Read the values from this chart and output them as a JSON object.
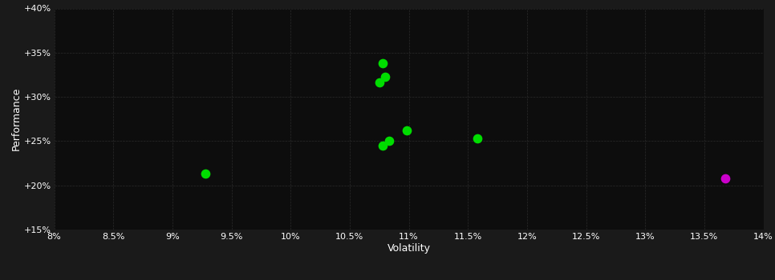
{
  "background_color": "#1a1a1a",
  "plot_bg_color": "#0d0d0d",
  "grid_color": "#2a2a2a",
  "text_color": "#ffffff",
  "xlabel": "Volatility",
  "ylabel": "Performance",
  "xlim": [
    0.08,
    0.14
  ],
  "ylim": [
    0.15,
    0.4
  ],
  "xticks": [
    0.08,
    0.085,
    0.09,
    0.095,
    0.1,
    0.105,
    0.11,
    0.115,
    0.12,
    0.125,
    0.13,
    0.135,
    0.14
  ],
  "yticks": [
    0.15,
    0.2,
    0.25,
    0.3,
    0.35,
    0.4
  ],
  "green_points": [
    [
      0.1078,
      0.338
    ],
    [
      0.108,
      0.323
    ],
    [
      0.1075,
      0.316
    ],
    [
      0.1098,
      0.262
    ],
    [
      0.1083,
      0.25
    ],
    [
      0.1078,
      0.245
    ],
    [
      0.1158,
      0.253
    ],
    [
      0.0928,
      0.213
    ]
  ],
  "magenta_points": [
    [
      0.1368,
      0.208
    ]
  ],
  "green_color": "#00dd00",
  "magenta_color": "#cc00cc",
  "marker_size": 55
}
